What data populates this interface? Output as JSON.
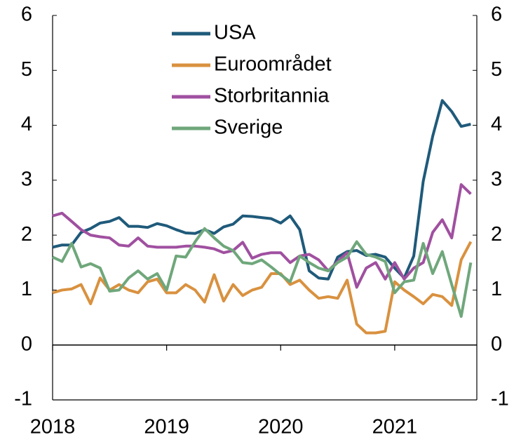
{
  "chart_data": {
    "type": "line",
    "x": [
      2018,
      2018.083,
      2018.167,
      2018.25,
      2018.333,
      2018.417,
      2018.5,
      2018.583,
      2018.667,
      2018.75,
      2018.833,
      2018.917,
      2019,
      2019.083,
      2019.167,
      2019.25,
      2019.333,
      2019.417,
      2019.5,
      2019.583,
      2019.667,
      2019.75,
      2019.833,
      2019.917,
      2020,
      2020.083,
      2020.167,
      2020.25,
      2020.333,
      2020.417,
      2020.5,
      2020.583,
      2020.667,
      2020.75,
      2020.833,
      2020.917,
      2021,
      2021.083,
      2021.167,
      2021.25,
      2021.333,
      2021.417,
      2021.5,
      2021.583,
      2021.667
    ],
    "series": [
      {
        "name": "USA",
        "color": "#1f5a7a",
        "values": [
          1.78,
          1.82,
          1.82,
          2.05,
          2.12,
          2.22,
          2.25,
          2.32,
          2.16,
          2.16,
          2.14,
          2.21,
          2.17,
          2.1,
          2.04,
          2.03,
          2.1,
          2.03,
          2.15,
          2.2,
          2.35,
          2.34,
          2.32,
          2.3,
          2.22,
          2.35,
          2.1,
          1.35,
          1.22,
          1.2,
          1.6,
          1.7,
          1.72,
          1.63,
          1.65,
          1.6,
          1.4,
          1.22,
          1.62,
          2.98,
          3.8,
          4.45,
          4.25,
          3.98,
          4.02
        ]
      },
      {
        "name": "Euroområdet",
        "color": "#d9913f",
        "values": [
          0.95,
          1.0,
          1.02,
          1.1,
          0.75,
          1.22,
          1.0,
          1.1,
          1.0,
          0.95,
          1.15,
          1.2,
          0.95,
          0.95,
          1.1,
          1.0,
          0.78,
          1.28,
          0.8,
          1.1,
          0.9,
          1.0,
          1.05,
          1.3,
          1.3,
          1.1,
          1.18,
          1.0,
          0.85,
          0.88,
          0.85,
          1.18,
          0.38,
          0.22,
          0.22,
          0.25,
          1.15,
          1.0,
          0.88,
          0.75,
          0.92,
          0.88,
          0.72,
          1.55,
          1.88
        ]
      },
      {
        "name": "Storbritannia",
        "color": "#a050a0",
        "values": [
          2.35,
          2.4,
          2.25,
          2.1,
          2.0,
          1.97,
          1.95,
          1.82,
          1.8,
          1.95,
          1.8,
          1.78,
          1.78,
          1.78,
          1.8,
          1.8,
          1.78,
          1.75,
          1.68,
          1.72,
          1.87,
          1.58,
          1.65,
          1.68,
          1.68,
          1.5,
          1.62,
          1.65,
          1.55,
          1.35,
          1.52,
          1.68,
          1.05,
          1.4,
          1.5,
          1.2,
          1.5,
          1.2,
          1.4,
          1.5,
          2.05,
          2.28,
          1.95,
          2.92,
          2.75
        ]
      },
      {
        "name": "Sverige",
        "color": "#6fa77b",
        "values": [
          1.6,
          1.52,
          1.85,
          1.42,
          1.48,
          1.4,
          0.98,
          1.0,
          1.22,
          1.35,
          1.2,
          1.3,
          1.0,
          1.62,
          1.6,
          1.88,
          2.12,
          1.95,
          1.8,
          1.72,
          1.5,
          1.48,
          1.55,
          1.42,
          1.28,
          1.15,
          1.62,
          1.5,
          1.4,
          1.35,
          1.5,
          1.6,
          1.88,
          1.65,
          1.6,
          1.52,
          0.95,
          1.15,
          1.18,
          1.85,
          1.3,
          1.7,
          1.1,
          0.52,
          1.5
        ]
      }
    ],
    "xlim": [
      2018,
      2021.72
    ],
    "xticks": [
      2018,
      2019,
      2020,
      2021
    ],
    "ylim": [
      -1,
      6
    ],
    "yticks": [
      -1,
      0,
      1,
      2,
      3,
      4,
      5,
      6
    ],
    "y2lim": [
      -1,
      6
    ],
    "y2ticks": [
      -1,
      0,
      1,
      2,
      3,
      4,
      5,
      6
    ],
    "legend": "upper center"
  }
}
